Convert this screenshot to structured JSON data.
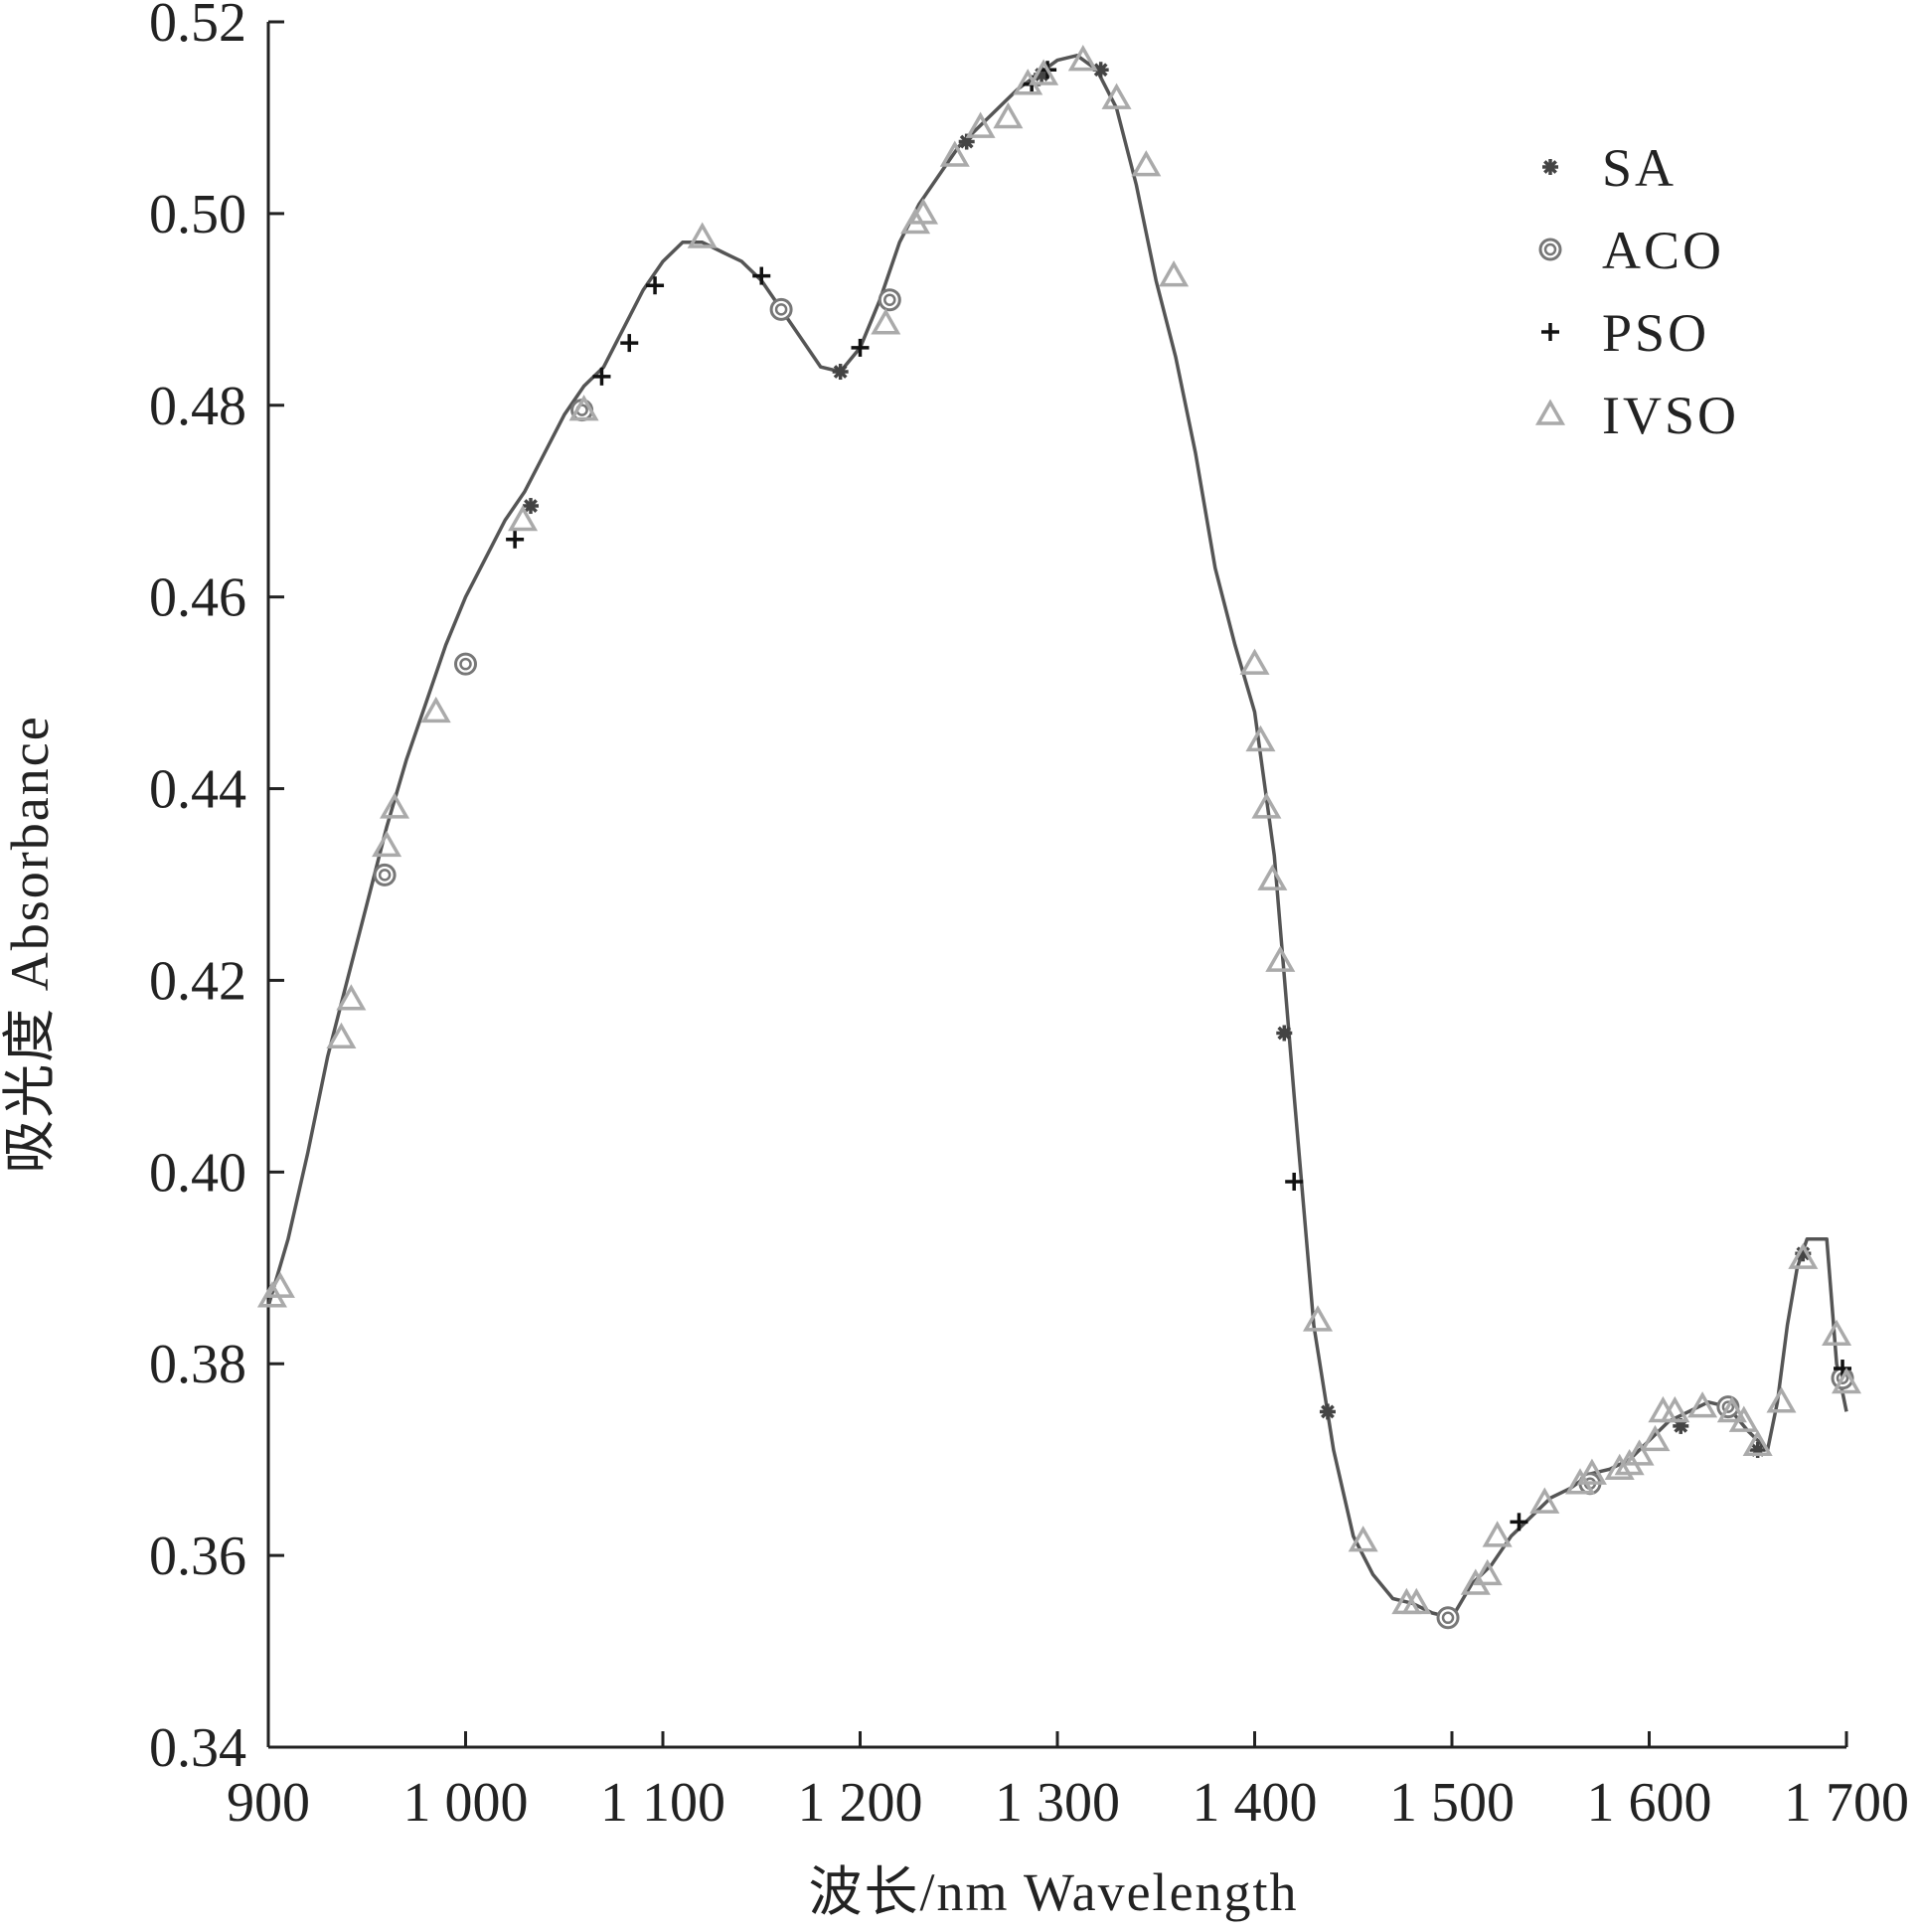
{
  "chart_data": {
    "type": "line",
    "xlabel": "波长/nm Wavelength",
    "ylabel": "吸光度 Absorbance",
    "xlim": [
      900,
      1700
    ],
    "ylim": [
      0.34,
      0.52
    ],
    "x_ticks": [
      900,
      1000,
      1100,
      1200,
      1300,
      1400,
      1500,
      1600,
      1700
    ],
    "x_tick_labels": [
      "900",
      "1 000",
      "1 100",
      "1 200",
      "1 300",
      "1 400",
      "1 500",
      "1 600",
      "1 700"
    ],
    "y_ticks": [
      0.34,
      0.36,
      0.38,
      0.4,
      0.42,
      0.44,
      0.46,
      0.48,
      0.5,
      0.52
    ],
    "y_tick_labels": [
      "0.34",
      "0.36",
      "0.38",
      "0.40",
      "0.42",
      "0.44",
      "0.46",
      "0.48",
      "0.50",
      "0.52"
    ],
    "grid": false,
    "legend_position": "top-right",
    "colors": {
      "spectrum": "#555555",
      "SA": "#444444",
      "ACO": "#777777",
      "PSO": "#111111",
      "IVSO": "#aaaaaa"
    },
    "spectrum": {
      "x": [
        900,
        910,
        920,
        930,
        940,
        950,
        960,
        970,
        980,
        990,
        1000,
        1010,
        1020,
        1030,
        1040,
        1050,
        1060,
        1070,
        1080,
        1090,
        1100,
        1110,
        1120,
        1130,
        1140,
        1150,
        1160,
        1170,
        1180,
        1190,
        1200,
        1210,
        1220,
        1230,
        1240,
        1250,
        1260,
        1270,
        1280,
        1290,
        1300,
        1310,
        1320,
        1330,
        1340,
        1350,
        1360,
        1370,
        1380,
        1390,
        1400,
        1410,
        1420,
        1430,
        1440,
        1450,
        1460,
        1470,
        1480,
        1490,
        1500,
        1510,
        1520,
        1530,
        1540,
        1550,
        1560,
        1570,
        1580,
        1590,
        1600,
        1610,
        1620,
        1630,
        1640,
        1650,
        1660,
        1665,
        1670,
        1675,
        1680,
        1685,
        1690,
        1695,
        1700
      ],
      "y": [
        0.386,
        0.393,
        0.402,
        0.412,
        0.42,
        0.428,
        0.436,
        0.443,
        0.449,
        0.455,
        0.46,
        0.464,
        0.468,
        0.471,
        0.475,
        0.479,
        0.482,
        0.484,
        0.488,
        0.492,
        0.495,
        0.497,
        0.497,
        0.496,
        0.495,
        0.493,
        0.49,
        0.487,
        0.484,
        0.4835,
        0.486,
        0.491,
        0.497,
        0.501,
        0.504,
        0.507,
        0.509,
        0.511,
        0.513,
        0.5145,
        0.516,
        0.5165,
        0.515,
        0.511,
        0.503,
        0.493,
        0.485,
        0.475,
        0.463,
        0.455,
        0.448,
        0.433,
        0.408,
        0.384,
        0.371,
        0.362,
        0.358,
        0.3555,
        0.355,
        0.354,
        0.3535,
        0.357,
        0.359,
        0.362,
        0.364,
        0.366,
        0.367,
        0.3685,
        0.369,
        0.37,
        0.372,
        0.374,
        0.375,
        0.376,
        0.3755,
        0.373,
        0.371,
        0.376,
        0.384,
        0.39,
        0.393,
        0.393,
        0.393,
        0.38,
        0.375
      ]
    },
    "series": [
      {
        "name": "SA",
        "marker": "asterisk",
        "x": [
          1033,
          1190,
          1254,
          1292,
          1322,
          1415,
          1437,
          1616,
          1655,
          1678,
          1697
        ],
        "y": [
          0.4695,
          0.4835,
          0.5075,
          0.5145,
          0.515,
          0.4145,
          0.375,
          0.3735,
          0.371,
          0.3915,
          0.3785
        ]
      },
      {
        "name": "ACO",
        "marker": "double-circle",
        "x": [
          959,
          1000,
          1059,
          1160,
          1215,
          1498,
          1570,
          1640,
          1698
        ],
        "y": [
          0.431,
          0.453,
          0.4795,
          0.49,
          0.491,
          0.3535,
          0.3675,
          0.3755,
          0.3785
        ]
      },
      {
        "name": "PSO",
        "marker": "plus",
        "x": [
          1025,
          1069,
          1083,
          1096,
          1150,
          1200,
          1287,
          1295,
          1420,
          1534,
          1698
        ],
        "y": [
          0.466,
          0.483,
          0.4865,
          0.4925,
          0.4935,
          0.486,
          0.5135,
          0.515,
          0.399,
          0.3635,
          0.3795
        ]
      },
      {
        "name": "IVSO",
        "marker": "triangle",
        "x": [
          902,
          906,
          937,
          942,
          960,
          964,
          985,
          1029,
          1060,
          1120,
          1213,
          1228,
          1232,
          1248,
          1261,
          1275,
          1285,
          1293,
          1313,
          1330,
          1345,
          1359,
          1400,
          1403,
          1406,
          1409,
          1413,
          1432,
          1455,
          1477,
          1482,
          1512,
          1518,
          1523,
          1547,
          1565,
          1571,
          1585,
          1590,
          1595,
          1603,
          1607,
          1613,
          1627,
          1642,
          1648,
          1655,
          1667,
          1678,
          1695,
          1700
        ],
        "y": [
          0.387,
          0.388,
          0.414,
          0.418,
          0.434,
          0.438,
          0.448,
          0.468,
          0.4795,
          0.4975,
          0.4885,
          0.499,
          0.5,
          0.506,
          0.509,
          0.51,
          0.5135,
          0.5145,
          0.516,
          0.512,
          0.505,
          0.4935,
          0.453,
          0.445,
          0.438,
          0.4305,
          0.422,
          0.3845,
          0.3615,
          0.355,
          0.355,
          0.357,
          0.358,
          0.362,
          0.3655,
          0.3675,
          0.3685,
          0.369,
          0.3695,
          0.3705,
          0.372,
          0.375,
          0.375,
          0.3755,
          0.375,
          0.374,
          0.3715,
          0.376,
          0.391,
          0.383,
          0.378
        ]
      }
    ]
  }
}
